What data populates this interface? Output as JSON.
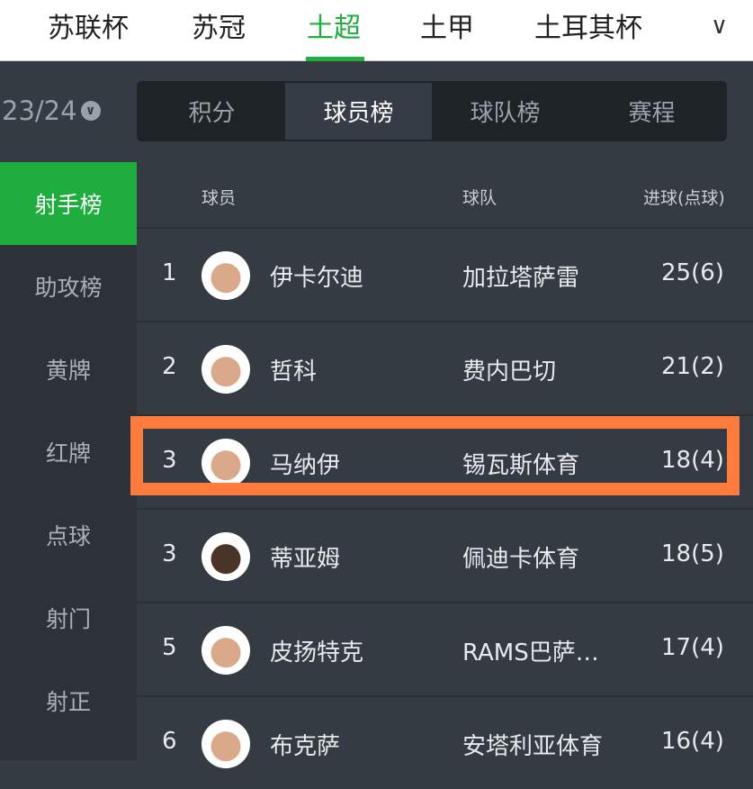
{
  "league_tabs": [
    {
      "label": "苏联杯"
    },
    {
      "label": "苏冠"
    },
    {
      "label": "土超",
      "active": true
    },
    {
      "label": "土甲"
    },
    {
      "label": "土耳其杯"
    }
  ],
  "season": "23/24",
  "segments": [
    {
      "label": "积分"
    },
    {
      "label": "球员榜",
      "active": true
    },
    {
      "label": "球队榜"
    },
    {
      "label": "赛程"
    }
  ],
  "sidebar": [
    {
      "label": "射手榜",
      "active": true
    },
    {
      "label": "助攻榜"
    },
    {
      "label": "黄牌"
    },
    {
      "label": "红牌"
    },
    {
      "label": "点球"
    },
    {
      "label": "射门"
    },
    {
      "label": "射正"
    }
  ],
  "table": {
    "headers": {
      "player": "球员",
      "team": "球队",
      "goals": "进球(点球)"
    },
    "rows": [
      {
        "rank": "1",
        "player": "伊卡尔迪",
        "team": "加拉塔萨雷",
        "goals": "25(6)"
      },
      {
        "rank": "2",
        "player": "哲科",
        "team": "费内巴切",
        "goals": "21(2)"
      },
      {
        "rank": "3",
        "player": "马纳伊",
        "team": "锡瓦斯体育",
        "goals": "18(4)",
        "highlighted": true
      },
      {
        "rank": "3",
        "player": "蒂亚姆",
        "team": "佩迪卡体育",
        "goals": "18(5)"
      },
      {
        "rank": "5",
        "player": "皮扬特克",
        "team": "RAMS巴萨…",
        "goals": "17(4)"
      },
      {
        "rank": "6",
        "player": "布克萨",
        "team": "安塔利亚体育",
        "goals": "16(4)"
      }
    ]
  },
  "colors": {
    "accent": "#1fae3e",
    "highlight": "#ff7a3d"
  }
}
